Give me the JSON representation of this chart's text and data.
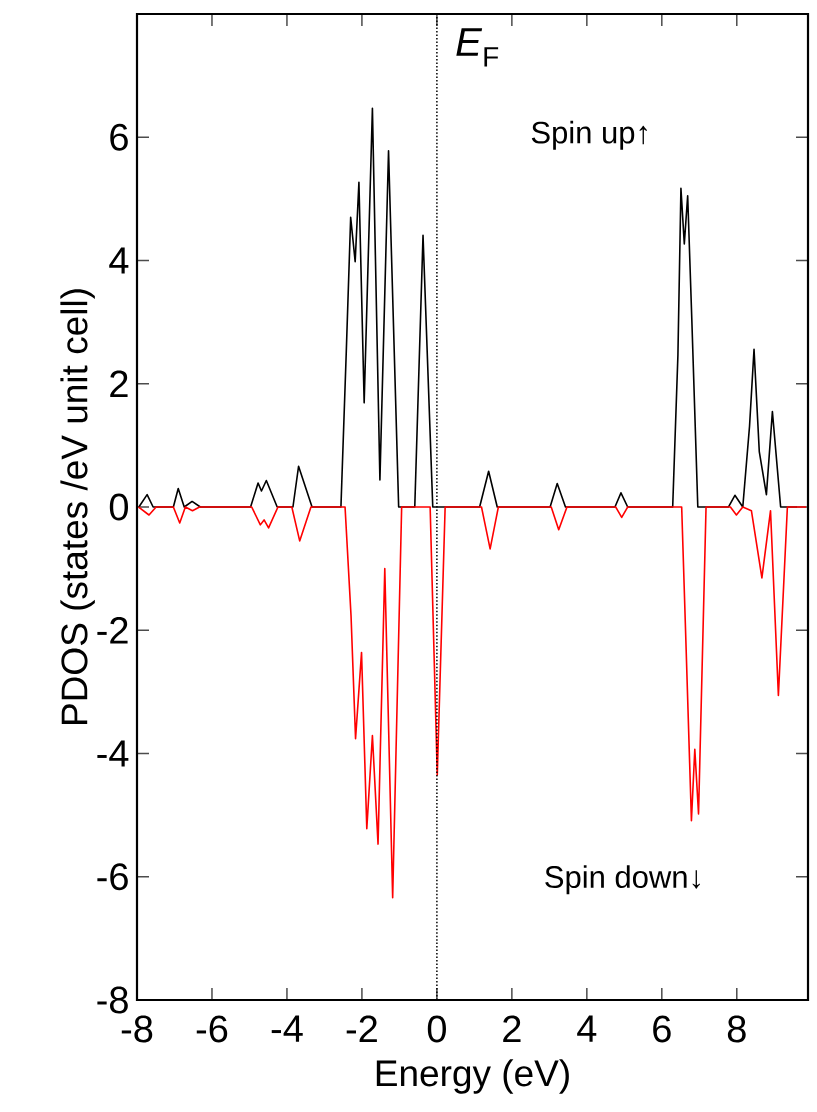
{
  "chart_data": {
    "type": "line",
    "xlabel": "Energy (eV)",
    "ylabel": "PDOS (states /eV unit cell)",
    "xlim": [
      -8,
      9.9
    ],
    "ylim": [
      -8,
      8
    ],
    "xticks": [
      -8,
      -6,
      -4,
      -2,
      0,
      2,
      4,
      6,
      8
    ],
    "yticks": [
      -8,
      -6,
      -4,
      -2,
      0,
      2,
      4,
      6
    ],
    "series": [
      {
        "color": "#000000",
        "x": [
          -7.95,
          -7.73,
          -7.57,
          -7.03,
          -6.9,
          -6.74,
          -6.53,
          -6.31,
          -4.97,
          -4.77,
          -4.68,
          -4.55,
          -4.26,
          -3.84,
          -3.69,
          -3.33,
          -2.56,
          -2.42,
          -2.3,
          -2.18,
          -2.08,
          -1.94,
          -1.72,
          -1.52,
          -1.29,
          -1.02,
          -0.59,
          -0.37,
          -0.11,
          1.14,
          1.38,
          1.61,
          3.02,
          3.21,
          3.43,
          4.75,
          4.91,
          5.09,
          6.29,
          6.43,
          6.51,
          6.6,
          6.69,
          6.8,
          6.96,
          7.78,
          7.95,
          8.16,
          8.34,
          8.46,
          8.6,
          8.79,
          8.95,
          9.17,
          9.6
        ],
        "values": [
          0,
          0.2,
          0,
          0,
          0.3,
          0,
          0.09,
          0,
          0,
          0.39,
          0.26,
          0.43,
          0,
          0,
          0.66,
          0,
          0,
          2.47,
          4.7,
          3.98,
          5.27,
          1.69,
          6.47,
          0.44,
          5.78,
          0,
          0,
          4.41,
          0,
          0,
          0.58,
          0,
          0,
          0.38,
          0,
          0,
          0.23,
          0,
          0,
          2.47,
          5.17,
          4.27,
          5.05,
          3.05,
          0,
          0,
          0.19,
          0,
          1.31,
          2.56,
          0.9,
          0.2,
          1.55,
          0,
          0
        ]
      },
      {
        "color": "#ff0000",
        "x": [
          -7.96,
          -7.68,
          -7.49,
          -7.03,
          -6.86,
          -6.71,
          -6.52,
          -6.33,
          -4.94,
          -4.71,
          -4.61,
          -4.49,
          -4.24,
          -3.87,
          -3.66,
          -3.36,
          -2.45,
          -2.29,
          -2.17,
          -2.01,
          -1.87,
          -1.72,
          -1.57,
          -1.39,
          -1.18,
          -0.94,
          -0.18,
          0.01,
          0.22,
          1.19,
          1.42,
          1.64,
          3.05,
          3.25,
          3.47,
          4.77,
          4.93,
          5.09,
          6.53,
          6.65,
          6.79,
          6.88,
          6.98,
          7.18,
          7.83,
          7.99,
          8.16,
          8.39,
          8.67,
          8.9,
          9.11,
          9.35,
          9.85
        ],
        "values": [
          0,
          -0.13,
          0,
          0,
          -0.26,
          0,
          -0.06,
          0,
          0,
          -0.29,
          -0.21,
          -0.34,
          0,
          0,
          -0.55,
          0,
          0,
          -1.77,
          -3.76,
          -2.36,
          -5.22,
          -3.71,
          -5.47,
          -1.0,
          -6.34,
          0,
          0,
          -4.35,
          0,
          0,
          -0.68,
          0,
          0,
          -0.37,
          0,
          0,
          -0.17,
          0,
          0,
          -2.33,
          -5.09,
          -3.93,
          -4.98,
          0,
          0,
          -0.13,
          0,
          -0.06,
          -1.15,
          -0.06,
          -3.06,
          0,
          0
        ]
      }
    ],
    "ref_lines": [
      {
        "axis": "x",
        "value": 0,
        "label": "*E*$_{F}$",
        "line_style": "dotted",
        "color": "#000000"
      }
    ],
    "annotations": [
      "Spin up↑",
      "Spin down↓"
    ]
  }
}
